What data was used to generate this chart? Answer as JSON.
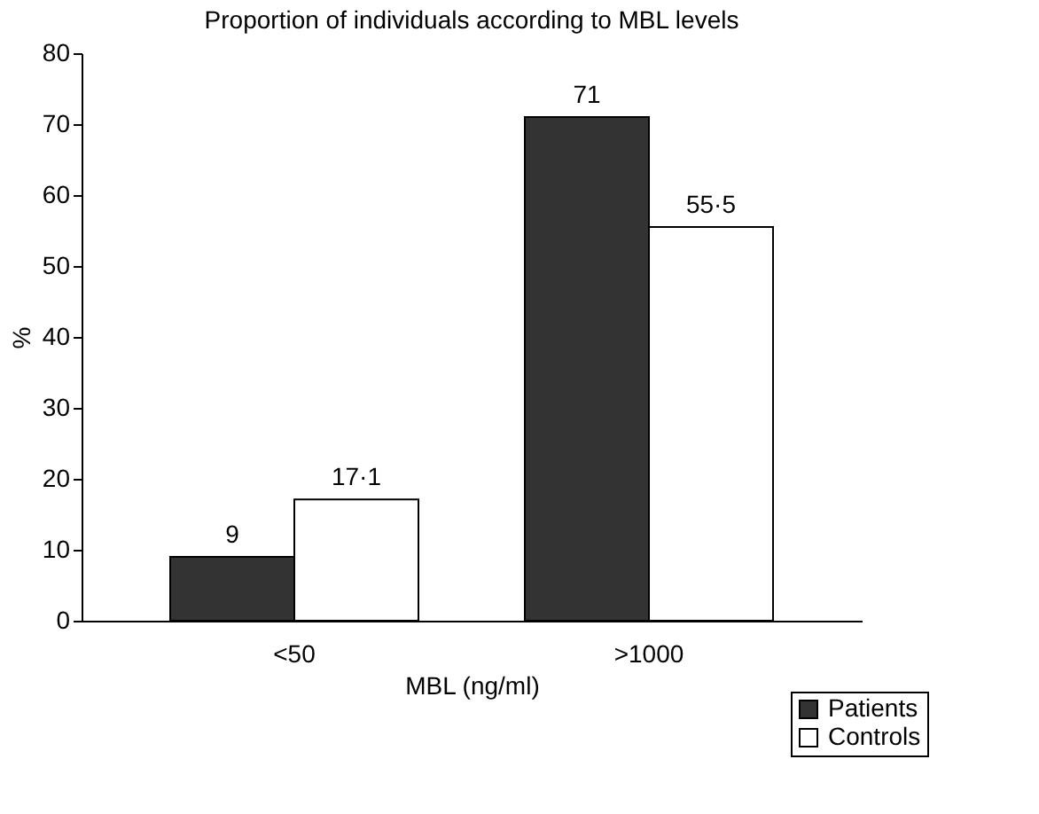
{
  "chart_data": {
    "type": "bar",
    "title": "Proportion of individuals according to MBL levels",
    "xlabel": "MBL (ng/ml)",
    "ylabel": "%",
    "categories": [
      "<50",
      ">1000"
    ],
    "series": [
      {
        "name": "Patients",
        "color": "#333333",
        "values": [
          9,
          71
        ],
        "value_labels": [
          "9",
          "71"
        ]
      },
      {
        "name": "Controls",
        "color": "#ffffff",
        "values": [
          17.1,
          55.5
        ],
        "value_labels": [
          "17·1",
          "55·5"
        ]
      }
    ],
    "ylim": [
      0,
      80
    ],
    "yticks": [
      0,
      10,
      20,
      30,
      40,
      50,
      60,
      70,
      80
    ],
    "grid": false,
    "legend": "bottom right"
  }
}
